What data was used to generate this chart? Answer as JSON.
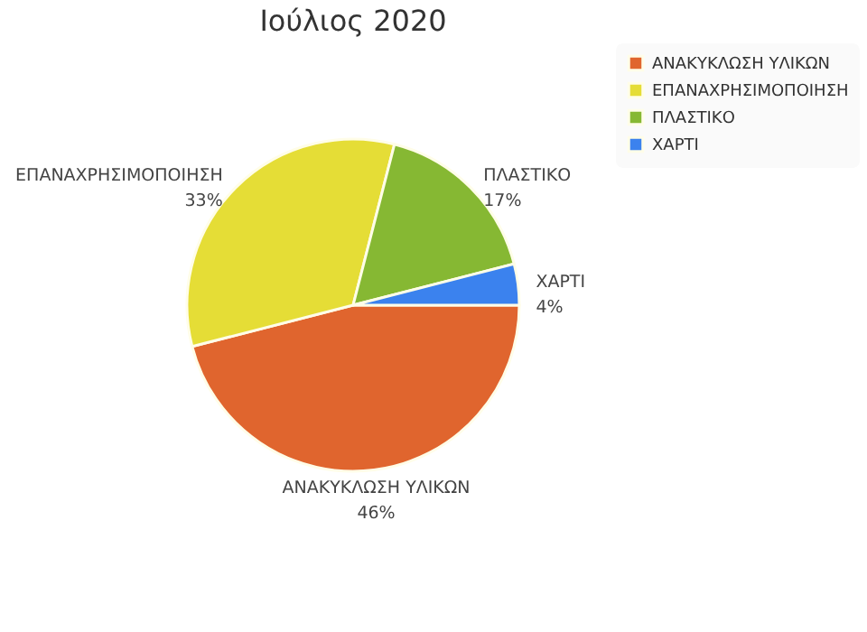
{
  "chart_data": {
    "type": "pie",
    "title": "Ιούλιος 2020",
    "categories": [
      "ΑΝΑΚΥΚΛΩΣΗ ΥΛΙΚΩΝ",
      "ΕΠΑΝΑΧΡΗΣΙΜΟΠΟΙΗΣΗ",
      "ΠΛΑΣΤΙΚΟ",
      "ΧΑΡΤΙ"
    ],
    "values": [
      46,
      33,
      17,
      4
    ],
    "colors": [
      "#e0652e",
      "#e5dd36",
      "#86b833",
      "#3b82ee"
    ],
    "value_labels": [
      "46%",
      "33%",
      "17%",
      "4%"
    ],
    "legend": "top right"
  }
}
